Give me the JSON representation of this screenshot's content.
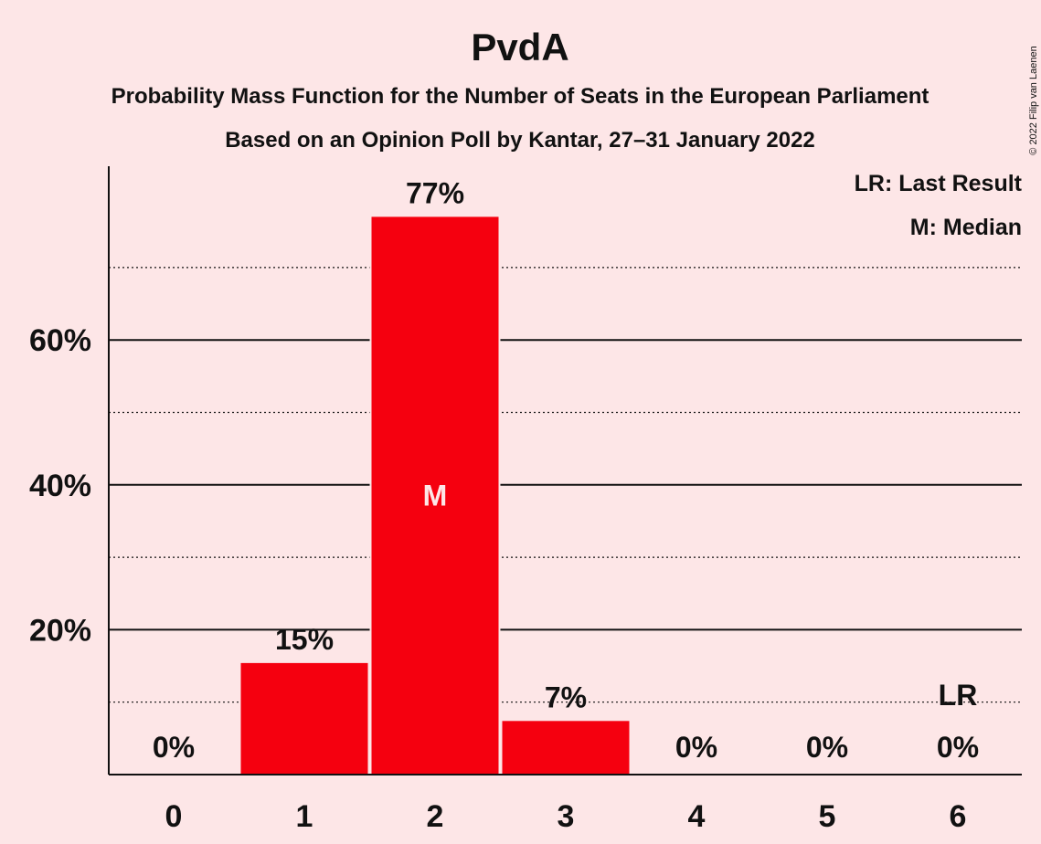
{
  "copyright": "© 2022 Filip van Laenen",
  "legend": {
    "last_result": "LR: Last Result",
    "median": "M: Median"
  },
  "chart_data": {
    "type": "bar",
    "title": "PvdA",
    "subtitle": "Probability Mass Function for the Number of Seats in the European Parliament",
    "subtitle2": "Based on an Opinion Poll by Kantar, 27–31 January 2022",
    "categories": [
      "0",
      "1",
      "2",
      "3",
      "4",
      "5",
      "6"
    ],
    "values": [
      0,
      15.4,
      77,
      7.4,
      0,
      0,
      0
    ],
    "value_labels": [
      "0%",
      "15%",
      "77%",
      "7%",
      "0%",
      "0%",
      "0%"
    ],
    "ylim": [
      0,
      84
    ],
    "yticks_major": [
      20,
      40,
      60
    ],
    "ytick_labels": [
      "20%",
      "40%",
      "60%"
    ],
    "yticks_minor": [
      10,
      30,
      50,
      70
    ],
    "median_category": "2",
    "median_marker": "M",
    "last_result_category": "6",
    "last_result_marker": "LR",
    "bar_color": "#f5000f",
    "grid": true,
    "legend_position": "top-right"
  }
}
